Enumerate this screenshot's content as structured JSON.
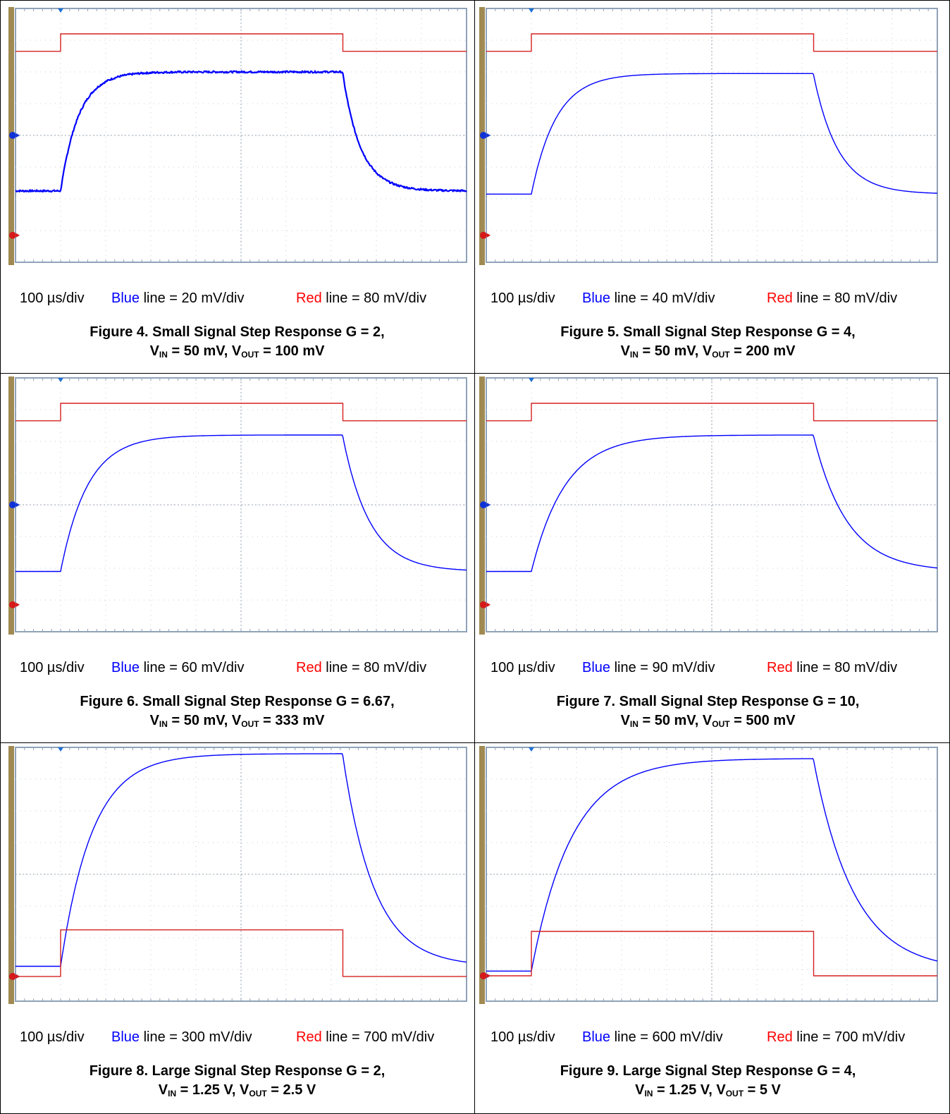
{
  "chart_data": [
    {
      "type": "line",
      "figure": "Figure 4.",
      "title": "Small Signal Step Response G = 2,",
      "subtitle": {
        "vin_label": "V",
        "vin_sub": "IN",
        "vin_value": " = 50 mV, ",
        "vout_label": "V",
        "vout_sub": "OUT",
        "vout_value": " = 100 mV"
      },
      "time_div": "100 µs/div",
      "blue_word": "Blue",
      "blue_rest": " line = 20 mV/div",
      "red_word": "Red",
      "red_rest": " line = 80 mV/div",
      "grid": true,
      "divisions": {
        "x": 10,
        "y": 8
      },
      "series": [
        {
          "color": "#0000ff",
          "low": 2.25,
          "high": 6.0,
          "tau": 0.4,
          "noisy": true
        },
        {
          "color": "#d62020",
          "low": 6.65,
          "high": 7.2,
          "tau": 0.0
        }
      ],
      "step_on": 1.0,
      "step_off": 7.25,
      "markers": {
        "blue": 4.0,
        "red": 0.85
      }
    },
    {
      "type": "line",
      "figure": "Figure 5.",
      "title": "Small Signal Step Response G = 4,",
      "subtitle": {
        "vin_label": "V",
        "vin_sub": "IN",
        "vin_value": " = 50 mV, ",
        "vout_label": "V",
        "vout_sub": "OUT",
        "vout_value": " = 200 mV"
      },
      "time_div": "100 µs/div",
      "blue_word": "Blue",
      "blue_rest": " line = 40 mV/div",
      "red_word": "Red",
      "red_rest": " line = 80 mV/div",
      "grid": true,
      "divisions": {
        "x": 10,
        "y": 8
      },
      "series": [
        {
          "color": "#0000ff",
          "low": 2.15,
          "high": 5.95,
          "tau": 0.55,
          "noisy": false
        },
        {
          "color": "#d62020",
          "low": 6.65,
          "high": 7.2,
          "tau": 0.0
        }
      ],
      "step_on": 1.0,
      "step_off": 7.25,
      "markers": {
        "blue": 4.0,
        "red": 0.85
      }
    },
    {
      "type": "line",
      "figure": "Figure 6.",
      "title": "Small Signal Step Response G = 6.67,",
      "subtitle": {
        "vin_label": "V",
        "vin_sub": "IN",
        "vin_value": " = 50 mV, ",
        "vout_label": "V",
        "vout_sub": "OUT",
        "vout_value": " = 333 mV"
      },
      "time_div": "100 µs/div",
      "blue_word": "Blue",
      "blue_rest": " line = 60 mV/div",
      "red_word": "Red",
      "red_rest": " line = 80 mV/div",
      "grid": true,
      "divisions": {
        "x": 10,
        "y": 8
      },
      "series": [
        {
          "color": "#0000ff",
          "low": 1.9,
          "high": 6.2,
          "tau": 0.6,
          "noisy": false
        },
        {
          "color": "#d62020",
          "low": 6.65,
          "high": 7.2,
          "tau": 0.0
        }
      ],
      "step_on": 1.0,
      "step_off": 7.25,
      "markers": {
        "blue": 4.0,
        "red": 0.85
      }
    },
    {
      "type": "line",
      "figure": "Figure 7.",
      "title": "Small Signal Step Response G = 10,",
      "subtitle": {
        "vin_label": "V",
        "vin_sub": "IN",
        "vin_value": " = 50 mV, ",
        "vout_label": "V",
        "vout_sub": "OUT",
        "vout_value": " = 500 mV"
      },
      "time_div": "100 µs/div",
      "blue_word": "Blue",
      "blue_rest": " line = 90 mV/div",
      "red_word": "Red",
      "red_rest": " line = 80 mV/div",
      "grid": true,
      "divisions": {
        "x": 10,
        "y": 8
      },
      "series": [
        {
          "color": "#0000ff",
          "low": 1.9,
          "high": 6.2,
          "tau": 0.75,
          "noisy": false
        },
        {
          "color": "#d62020",
          "low": 6.65,
          "high": 7.2,
          "tau": 0.0
        }
      ],
      "step_on": 1.0,
      "step_off": 7.25,
      "markers": {
        "blue": 4.0,
        "red": 0.85
      }
    },
    {
      "type": "line",
      "figure": "Figure 8.",
      "title": "Large Signal Step Response G = 2,",
      "subtitle": {
        "vin_label": "V",
        "vin_sub": "IN",
        "vin_value": " = 1.25 V, ",
        "vout_label": "V",
        "vout_sub": "OUT",
        "vout_value": " = 2.5 V"
      },
      "time_div": "100 µs/div",
      "blue_word": "Blue",
      "blue_rest": " line = 300 mV/div",
      "red_word": "Red",
      "red_rest": " line = 700 mV/div",
      "grid": true,
      "divisions": {
        "x": 10,
        "y": 8
      },
      "series": [
        {
          "color": "#0000ff",
          "low": 1.1,
          "high": 7.8,
          "tau": 0.7,
          "noisy": false
        },
        {
          "color": "#d62020",
          "low": 0.78,
          "high": 2.25,
          "tau": 0.0
        }
      ],
      "step_on": 1.0,
      "step_off": 7.25,
      "markers": {
        "blue": 0.78,
        "red": 0.78
      }
    },
    {
      "type": "line",
      "figure": "Figure 9.",
      "title": "Large Signal Step Response G = 4,",
      "subtitle": {
        "vin_label": "V",
        "vin_sub": "IN",
        "vin_value": " = 1.25 V, ",
        "vout_label": "V",
        "vout_sub": "OUT",
        "vout_value": " = 5 V"
      },
      "time_div": "100 µs/div",
      "blue_word": "Blue",
      "blue_rest": " line = 600 mV/div",
      "red_word": "Red",
      "red_rest": " line = 700 mV/div",
      "grid": true,
      "divisions": {
        "x": 10,
        "y": 8
      },
      "series": [
        {
          "color": "#0000ff",
          "low": 0.95,
          "high": 7.65,
          "tau": 0.9,
          "noisy": false
        },
        {
          "color": "#d62020",
          "low": 0.8,
          "high": 2.2,
          "tau": 0.0
        }
      ],
      "step_on": 1.0,
      "step_off": 7.25,
      "markers": {
        "blue": 0.8,
        "red": 0.8
      }
    }
  ]
}
